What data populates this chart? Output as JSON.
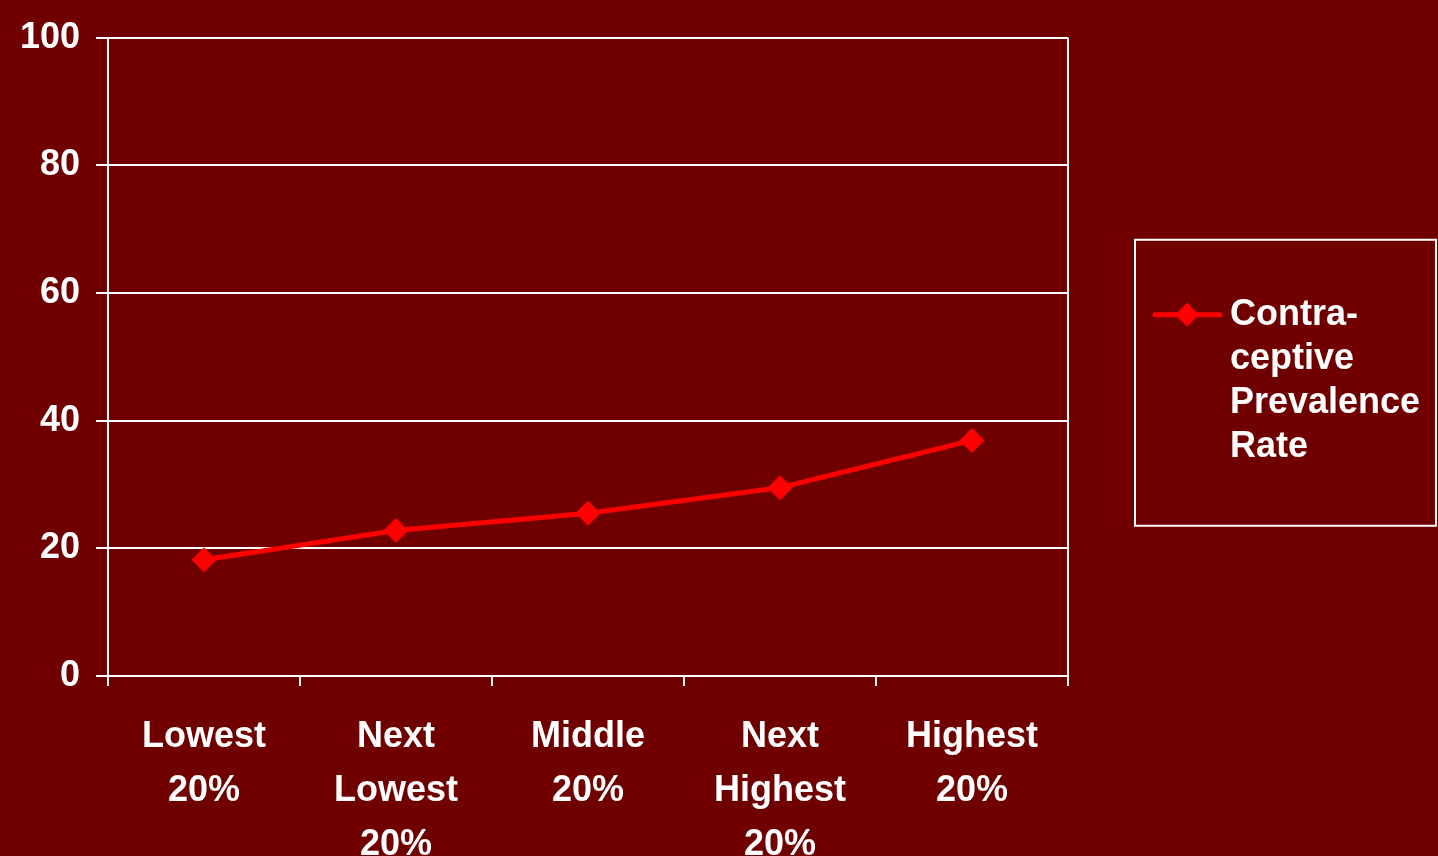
{
  "chart_data": {
    "type": "line",
    "categories": [
      "Lowest 20%",
      "Next Lowest 20%",
      "Middle 20%",
      "Next Highest 20%",
      "Highest 20%"
    ],
    "series": [
      {
        "name": "Contra-ceptive Prevalence Rate",
        "color": "#ff0000",
        "values": [
          18.2,
          22.8,
          25.5,
          29.5,
          36.9
        ]
      }
    ],
    "ylim": [
      0,
      100
    ],
    "yticks": [
      0,
      20,
      40,
      60,
      80,
      100
    ],
    "grid": "y",
    "legend": "right",
    "marker": "diamond",
    "line_style": "solid"
  }
}
